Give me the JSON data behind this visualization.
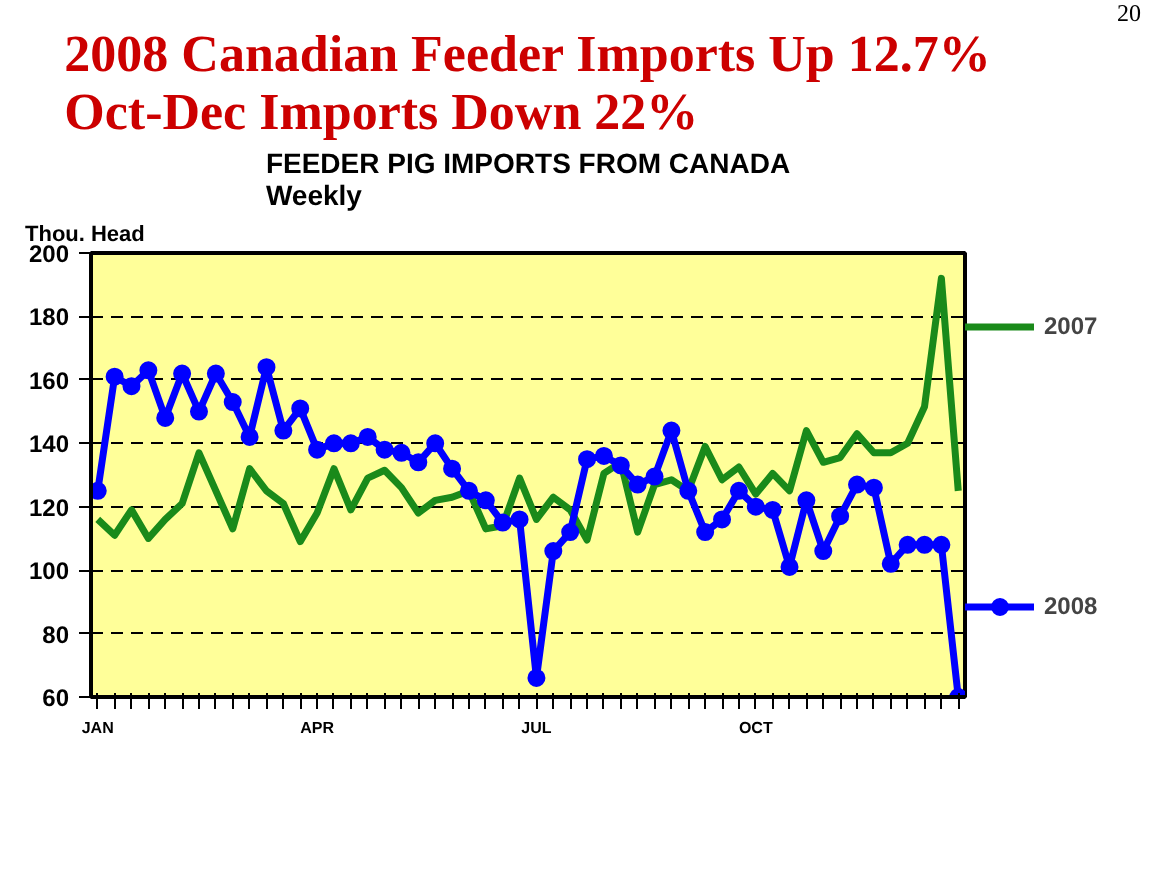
{
  "chart_data": {
    "type": "line",
    "title": "2008 Canadian Feeder Imports Up 12.7%\nOct-Dec Imports Down 22%",
    "subtitle": "FEEDER PIG IMPORTS FROM CANADA\nWeekly",
    "ylabel": "Thou. Head",
    "annotations": [
      "20"
    ],
    "categories": [
      "JAN",
      null,
      null,
      null,
      null,
      null,
      null,
      null,
      null,
      null,
      null,
      null,
      null,
      "APR",
      null,
      null,
      null,
      null,
      null,
      null,
      null,
      null,
      null,
      null,
      null,
      null,
      "JUL",
      null,
      null,
      null,
      null,
      null,
      null,
      null,
      null,
      null,
      null,
      null,
      null,
      "OCT",
      null,
      null,
      null,
      null,
      null,
      null,
      null,
      null,
      null,
      null,
      null,
      null
    ],
    "series": [
      {
        "name": "2007",
        "color": "#1a8a1a",
        "marker": "none",
        "values": [
          116,
          111,
          119,
          110,
          116,
          121,
          137,
          125,
          113,
          132,
          125,
          121,
          109,
          118,
          132,
          119,
          129,
          131.5,
          126,
          118,
          122,
          123,
          125,
          113,
          114,
          129,
          116,
          123,
          119,
          109.5,
          130.5,
          134,
          112,
          127,
          128.5,
          125,
          139,
          128.5,
          132.5,
          124,
          130.5,
          125,
          144,
          134,
          135.5,
          143,
          137,
          137,
          140,
          151.5,
          192,
          125
        ]
      },
      {
        "name": "2008",
        "color": "#0000ff",
        "marker": "circle",
        "values": [
          125,
          161,
          158,
          163,
          148,
          162,
          150,
          162,
          153,
          142,
          164,
          144,
          151,
          138,
          140,
          140,
          142,
          138,
          137,
          134,
          140,
          132,
          125,
          122,
          115,
          116,
          66,
          106,
          112,
          135,
          136,
          133,
          127,
          129.5,
          144,
          125,
          112,
          116,
          125,
          120,
          119,
          101,
          122,
          106,
          117,
          127,
          126,
          102,
          108,
          108,
          108,
          60
        ]
      }
    ],
    "ylim": [
      60,
      200
    ],
    "yticks": [
      60,
      80,
      100,
      120,
      140,
      160,
      180,
      200
    ],
    "grid": "y",
    "legend": "right",
    "line_style": "solid"
  }
}
